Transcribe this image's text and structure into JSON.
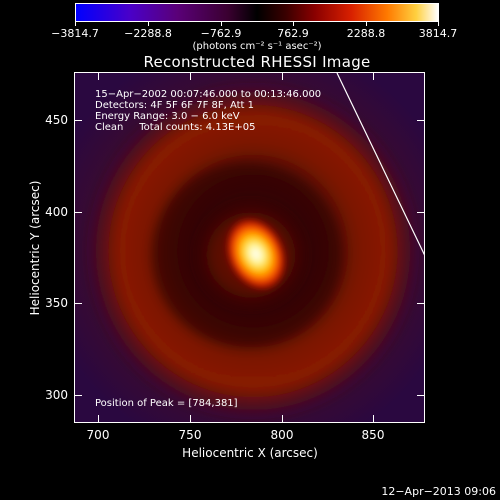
{
  "colorbar": {
    "tick_labels": [
      "−3814.7",
      "−2288.8",
      "−762.9",
      "762.9",
      "2288.8",
      "3814.7"
    ],
    "unit_label": "(photons cm⁻² s⁻¹ asec⁻²)",
    "colormap": [
      "#0000ff",
      "#5a0078",
      "#000000",
      "#8a0000",
      "#ff7a00",
      "#ffffff"
    ]
  },
  "title": "Reconstructed RHESSI Image",
  "annotations": {
    "time_range": "15−Apr−2002 00:07:46.000 to 00:13:46.000",
    "detectors": "Detectors: 4F 5F 6F 7F 8F, Att 1",
    "energy_range": "Energy Range: 3.0 − 6.0 keV",
    "method_counts": "Clean     Total counts: 4.13E+05",
    "peak_position": "Position of Peak = [784,381]"
  },
  "axes": {
    "x_label": "Heliocentric X (arcsec)",
    "y_label": "Heliocentric Y (arcsec)",
    "x_ticks": [
      "700",
      "750",
      "800",
      "850"
    ],
    "y_ticks": [
      "300",
      "350",
      "400",
      "450"
    ]
  },
  "image": {
    "peak": [
      784,
      381
    ],
    "peak_color": "#ffffff",
    "ring_color": "#8a1a00",
    "background_color": "#3a0a40"
  },
  "timestamp": "12−Apr−2013 09:06"
}
